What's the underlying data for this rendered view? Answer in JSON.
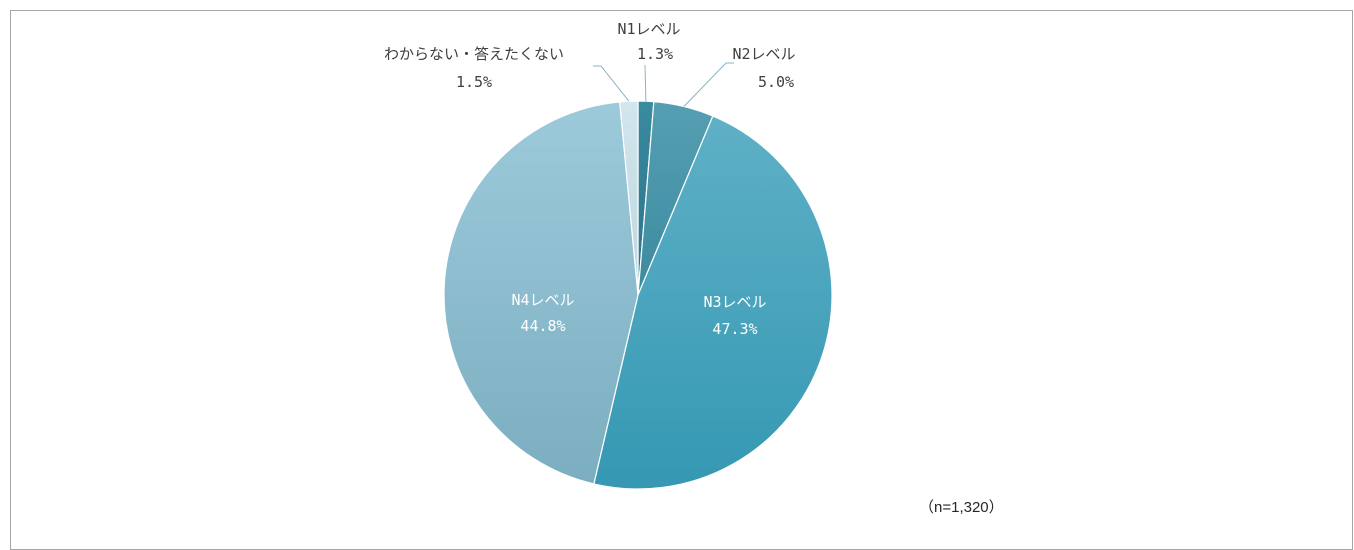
{
  "chart_data": {
    "type": "pie",
    "slices": [
      {
        "name": "N1レベル",
        "value": 1.3,
        "label": "1.3%",
        "color": "#2f7f95"
      },
      {
        "name": "N2レベル",
        "value": 5.0,
        "label": "5.0%",
        "color": "#4896ac"
      },
      {
        "name": "N3レベル",
        "value": 47.3,
        "label": "47.3%",
        "color": "#48a6c0"
      },
      {
        "name": "N4レベル",
        "value": 44.8,
        "label": "44.8%",
        "color": "#8cbccb"
      },
      {
        "name": "わからない・答えたくない",
        "value": 1.5,
        "label": "1.5%",
        "color": "#c7dde4"
      }
    ],
    "start_angle_deg": 0,
    "direction": "clockwise"
  },
  "note": "（n=1,320）"
}
